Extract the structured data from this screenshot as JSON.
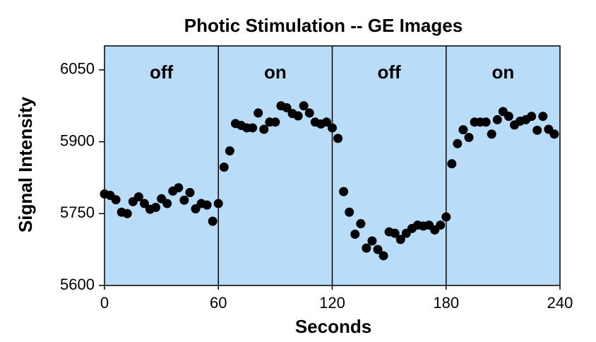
{
  "chart_data": {
    "type": "scatter",
    "title": "Photic Stimulation -- GE Images",
    "x_label": "Seconds",
    "y_label": "Signal Intensity",
    "xlim": [
      0,
      240
    ],
    "ylim": [
      5600,
      6100
    ],
    "xticks": [
      0,
      60,
      120,
      180,
      240
    ],
    "yticks": [
      5600,
      5750,
      5900,
      6050
    ],
    "background_color": "#b9dcf8",
    "phases": [
      {
        "label": "off",
        "start": 0,
        "end": 60
      },
      {
        "label": "on",
        "start": 60,
        "end": 120
      },
      {
        "label": "off",
        "start": 120,
        "end": 180
      },
      {
        "label": "on",
        "start": 180,
        "end": 240
      }
    ],
    "series": [
      {
        "color": "#000000",
        "x": [
          0,
          3,
          6,
          9,
          12,
          15,
          18,
          21,
          24,
          27,
          30,
          33,
          36,
          39,
          42,
          45,
          48,
          51,
          54,
          57,
          60,
          63,
          66,
          69,
          72,
          75,
          78,
          81,
          84,
          87,
          90,
          93,
          96,
          99,
          102,
          105,
          108,
          111,
          114,
          117,
          120,
          123,
          126,
          129,
          132,
          135,
          138,
          141,
          144,
          147,
          150,
          153,
          156,
          159,
          162,
          165,
          168,
          171,
          174,
          177,
          180,
          183,
          186,
          189,
          192,
          195,
          198,
          201,
          204,
          207,
          210,
          213,
          216,
          219,
          222,
          225,
          228,
          231,
          234,
          237
        ],
        "values": [
          5791,
          5788,
          5779,
          5753,
          5750,
          5775,
          5785,
          5771,
          5759,
          5763,
          5781,
          5771,
          5797,
          5804,
          5778,
          5794,
          5760,
          5771,
          5768,
          5734,
          5771,
          5847,
          5881,
          5938,
          5934,
          5929,
          5929,
          5960,
          5926,
          5941,
          5941,
          5975,
          5971,
          5959,
          5954,
          5975,
          5960,
          5941,
          5937,
          5941,
          5929,
          5907,
          5796,
          5753,
          5707,
          5729,
          5678,
          5693,
          5675,
          5662,
          5712,
          5709,
          5696,
          5709,
          5719,
          5726,
          5724,
          5726,
          5716,
          5726,
          5743,
          5854,
          5896,
          5925,
          5909,
          5941,
          5941,
          5941,
          5916,
          5946,
          5963,
          5953,
          5935,
          5943,
          5946,
          5953,
          5924,
          5953,
          5926,
          5916
        ]
      }
    ]
  }
}
